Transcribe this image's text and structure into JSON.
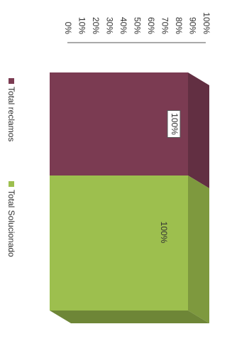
{
  "chart_data": {
    "type": "bar3d",
    "series": [
      {
        "name": "Total reclamos",
        "color": "#7b3b52",
        "values": [
          100
        ],
        "value_labels": [
          "100%"
        ]
      },
      {
        "name": "Total Solucionado",
        "color": "#9dbf4e",
        "values": [
          100
        ],
        "value_labels": [
          "100%"
        ]
      }
    ],
    "ylim": [
      0,
      100
    ],
    "yticks": [
      {
        "value": 0,
        "label": "0%"
      },
      {
        "value": 10,
        "label": "10%"
      },
      {
        "value": 20,
        "label": "20%"
      },
      {
        "value": 30,
        "label": "30%"
      },
      {
        "value": 40,
        "label": "40%"
      },
      {
        "value": 50,
        "label": "50%"
      },
      {
        "value": 60,
        "label": "60%"
      },
      {
        "value": 70,
        "label": "70%"
      },
      {
        "value": 80,
        "label": "80%"
      },
      {
        "value": 90,
        "label": "90%"
      },
      {
        "value": 100,
        "label": "100%"
      }
    ],
    "legend": "bottom"
  }
}
